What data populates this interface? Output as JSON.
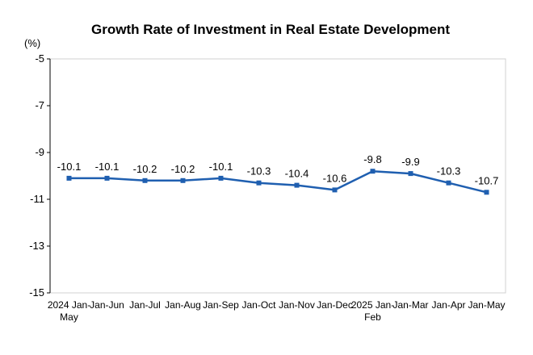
{
  "chart_data": {
    "type": "line",
    "title": "Growth Rate of Investment in Real Estate Development",
    "ylabel": "(%)",
    "xlabel": "",
    "ylim": [
      -15,
      -5
    ],
    "yticks": [
      -5,
      -7,
      -9,
      -11,
      -13,
      -15
    ],
    "grid": false,
    "legend": "none",
    "categories": [
      [
        "2024 Jan-",
        "May"
      ],
      [
        "Jan-Jun"
      ],
      [
        "Jan-Jul"
      ],
      [
        "Jan-Aug"
      ],
      [
        "Jan-Sep"
      ],
      [
        "Jan-Oct"
      ],
      [
        "Jan-Nov"
      ],
      [
        "Jan-Dec"
      ],
      [
        "2025 Jan-",
        "Feb"
      ],
      [
        "Jan-Mar"
      ],
      [
        "Jan-Apr"
      ],
      [
        "Jan-May"
      ]
    ],
    "series": [
      {
        "name": "Growth Rate of Investment in Real Estate Development",
        "color": "#1f5fb0",
        "values": [
          -10.1,
          -10.1,
          -10.2,
          -10.2,
          -10.1,
          -10.3,
          -10.4,
          -10.6,
          -9.8,
          -9.9,
          -10.3,
          -10.7
        ]
      }
    ]
  }
}
